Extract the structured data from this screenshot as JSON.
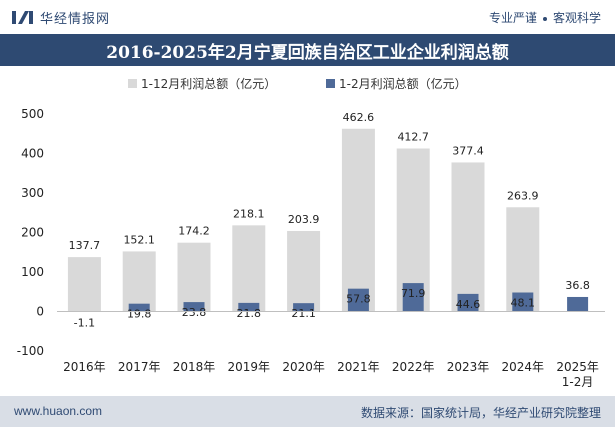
{
  "header": {
    "brand": "华经情报网",
    "slogan_left": "专业严谨",
    "slogan_right": "客观科学"
  },
  "footer": {
    "site": "www.huaon.com",
    "source": "数据来源：国家统计局，华经产业研究院整理"
  },
  "colors": {
    "full_year": "#d9d9d9",
    "jan_feb": "#4f6a98",
    "band": "#2e4a72"
  },
  "chart_data": {
    "type": "bar",
    "title": "2016-2025年2月宁夏回族自治区工业企业利润总额",
    "categories": [
      "2016年",
      "2017年",
      "2018年",
      "2019年",
      "2020年",
      "2021年",
      "2022年",
      "2023年",
      "2024年",
      "2025年\n1-2月"
    ],
    "series": [
      {
        "name": "1-12月利润总额（亿元）",
        "values": [
          137.7,
          152.1,
          174.2,
          218.1,
          203.9,
          462.6,
          412.7,
          377.4,
          263.9,
          null
        ]
      },
      {
        "name": "1-2月利润总额（亿元）",
        "values": [
          -1.1,
          19.8,
          23.8,
          21.8,
          21.1,
          57.8,
          71.9,
          44.6,
          48.1,
          36.8
        ]
      }
    ],
    "ylim": [
      -100,
      500
    ],
    "yticks": [
      -100,
      0,
      100,
      200,
      300,
      400,
      500
    ],
    "legend_position": "top-center",
    "grid": false
  }
}
